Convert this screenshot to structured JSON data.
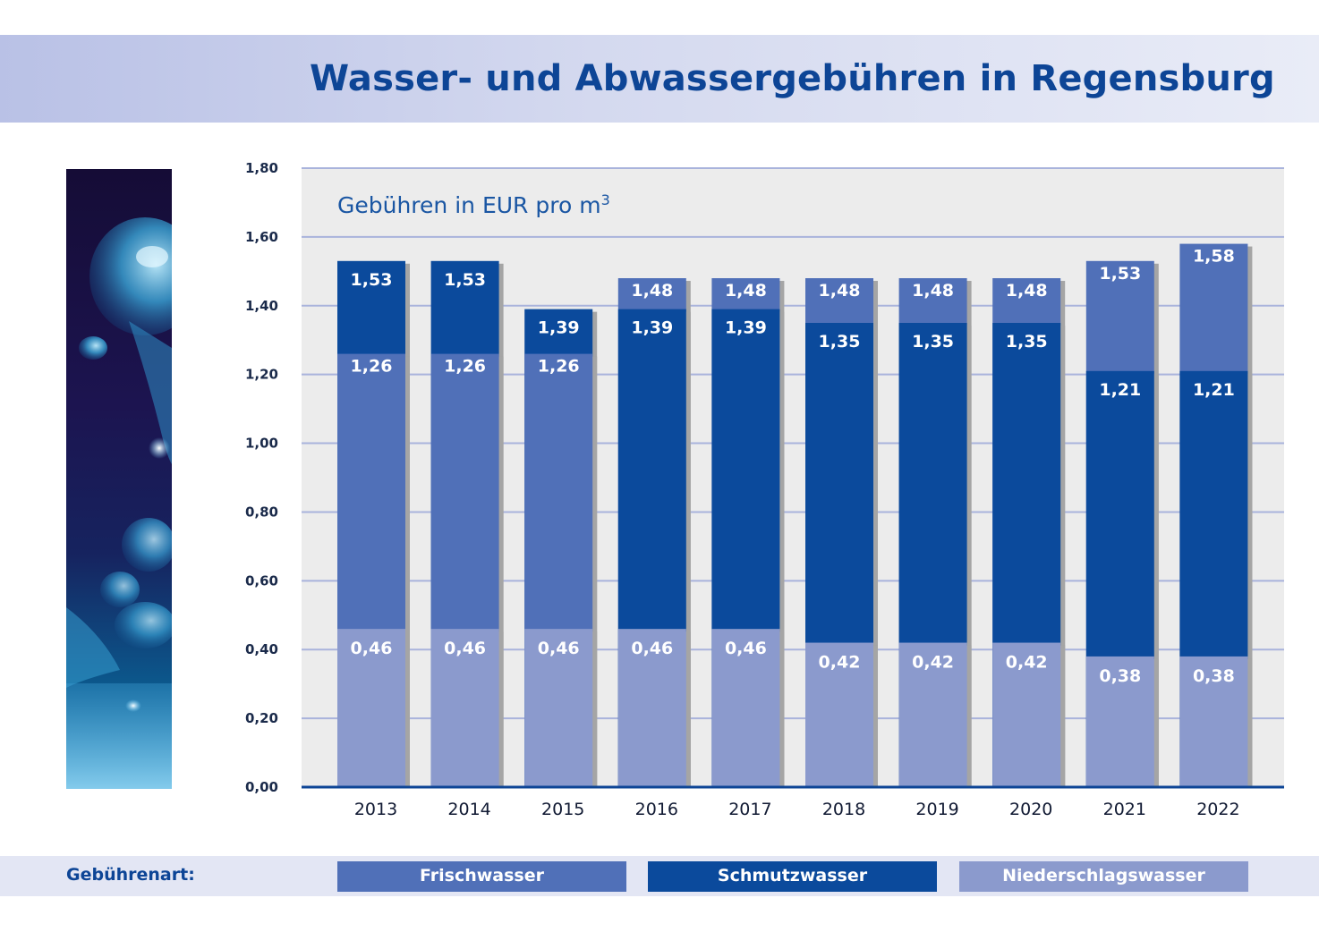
{
  "page": {
    "title": "Wasser- und Abwassergebühren in Regensburg",
    "subtitle": "Gebühren in EUR pro m",
    "subtitle_sup": "3"
  },
  "legend": {
    "label": "Gebührenart:",
    "items": [
      {
        "label": "Frischwasser",
        "color": "#5070b8"
      },
      {
        "label": "Schmutzwasser",
        "color": "#0b4a9c"
      },
      {
        "label": "Niederschlagswasser",
        "color": "#8b9acd"
      }
    ]
  },
  "chart_data": {
    "type": "bar",
    "title": "Wasser- und Abwassergebühren in Regensburg",
    "subtitle": "Gebühren in EUR pro m³",
    "xlabel": "",
    "ylabel": "",
    "ylim": [
      0,
      1.8
    ],
    "yticks": [
      "0,00",
      "0,20",
      "0,40",
      "0,60",
      "0,80",
      "1,00",
      "1,20",
      "1,40",
      "1,60",
      "1,80"
    ],
    "grid": true,
    "legend_position": "bottom",
    "categories": [
      "2013",
      "2014",
      "2015",
      "2016",
      "2017",
      "2018",
      "2019",
      "2020",
      "2021",
      "2022"
    ],
    "series": [
      {
        "name": "Frischwasser",
        "color": "#5070b8",
        "values": [
          1.26,
          1.26,
          1.26,
          1.48,
          1.48,
          1.48,
          1.48,
          1.48,
          1.53,
          1.58
        ],
        "labels": [
          "1,26",
          "1,26",
          "1,26",
          "1,48",
          "1,48",
          "1,48",
          "1,48",
          "1,48",
          "1,53",
          "1,58"
        ]
      },
      {
        "name": "Schmutzwasser",
        "color": "#0b4a9c",
        "values": [
          1.53,
          1.53,
          1.39,
          1.39,
          1.39,
          1.35,
          1.35,
          1.35,
          1.21,
          1.21
        ],
        "labels": [
          "1,53",
          "1,53",
          "1,39",
          "1,39",
          "1,39",
          "1,35",
          "1,35",
          "1,35",
          "1,21",
          "1,21"
        ]
      },
      {
        "name": "Niederschlagswasser",
        "color": "#8b9acd",
        "values": [
          0.46,
          0.46,
          0.46,
          0.46,
          0.46,
          0.42,
          0.42,
          0.42,
          0.38,
          0.38
        ],
        "labels": [
          "0,46",
          "0,46",
          "0,46",
          "0,46",
          "0,46",
          "0,42",
          "0,42",
          "0,42",
          "0,38",
          "0,38"
        ]
      }
    ]
  }
}
